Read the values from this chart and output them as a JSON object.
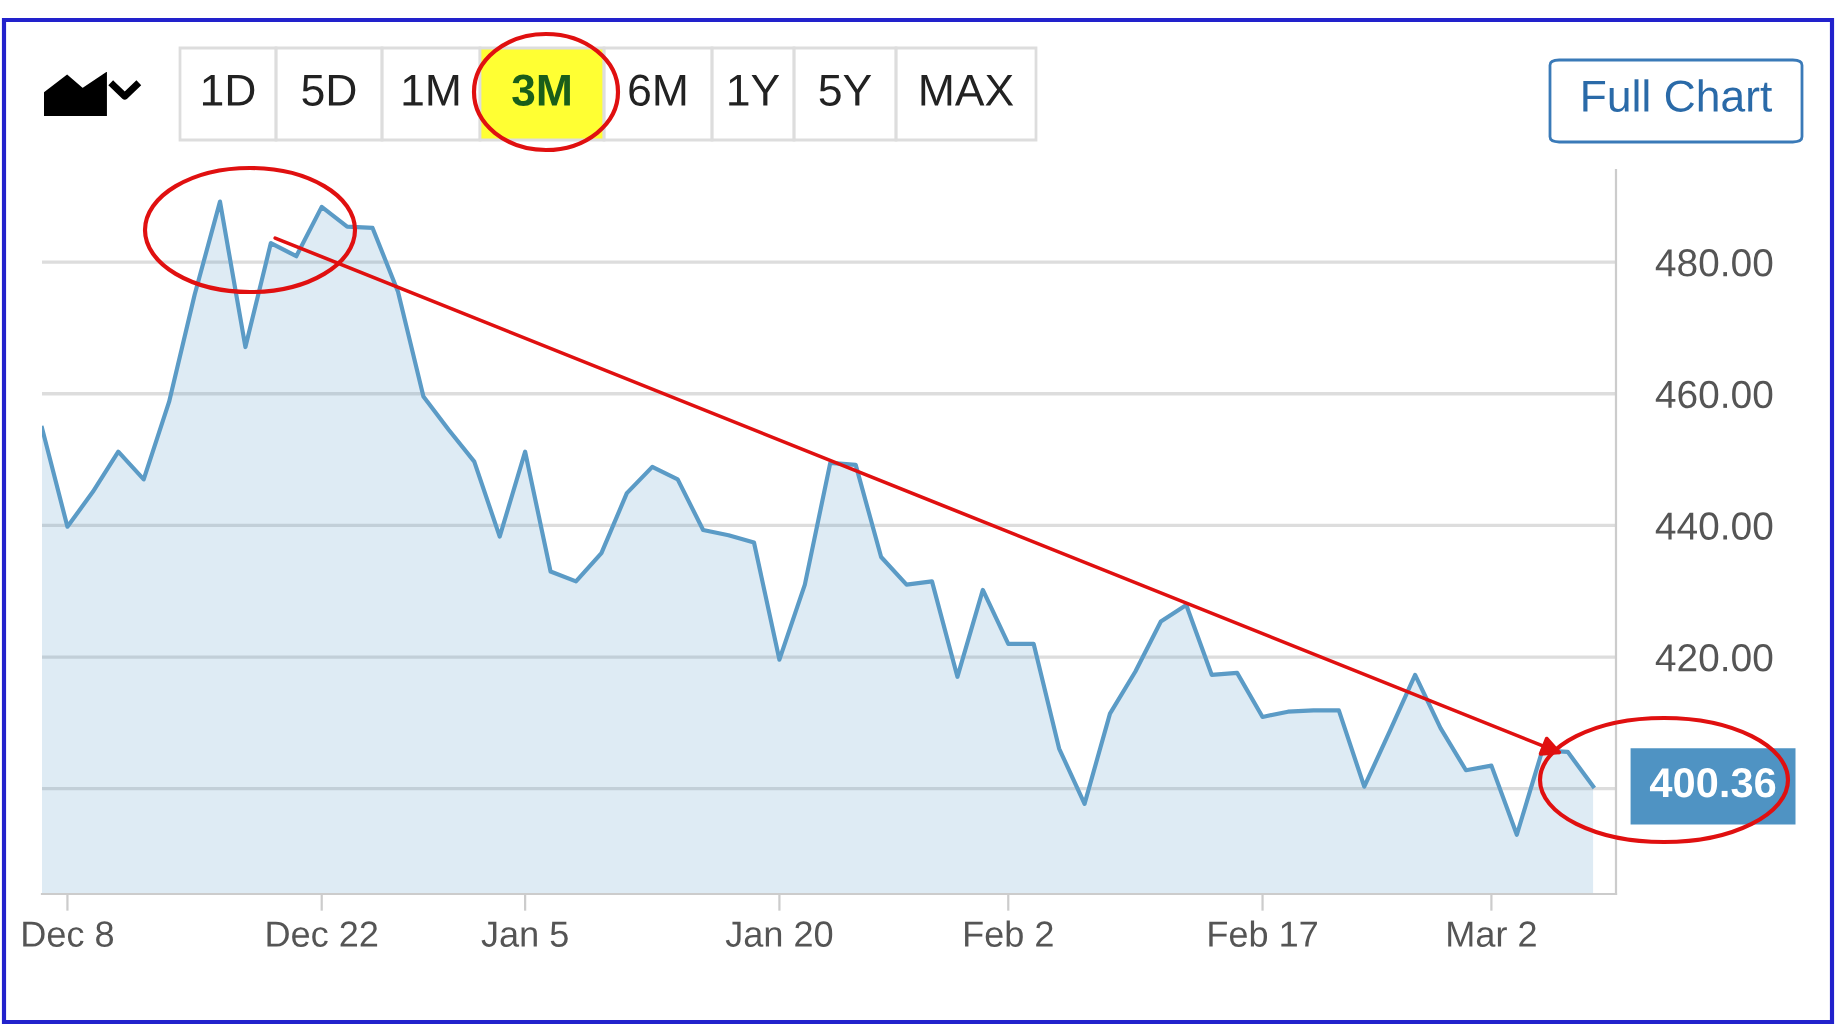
{
  "chart_data": {
    "type": "area",
    "categories": [
      null,
      "Dec 8",
      null,
      null,
      null,
      null,
      null,
      null,
      null,
      null,
      null,
      "Dec 22",
      null,
      null,
      null,
      null,
      null,
      null,
      null,
      "Jan 5",
      null,
      null,
      null,
      null,
      null,
      null,
      null,
      null,
      null,
      "Jan 20",
      null,
      null,
      null,
      null,
      null,
      null,
      null,
      null,
      "Feb 2",
      null,
      null,
      null,
      null,
      null,
      null,
      null,
      null,
      null,
      "Feb 17",
      null,
      null,
      null,
      null,
      null,
      null,
      null,
      null,
      "Mar 2",
      null,
      null,
      null,
      null
    ],
    "series": [
      {
        "color": "#5b9bc6",
        "values": [
          454.8,
          439.8,
          445.1,
          451.2,
          447.0,
          458.8,
          475.0,
          489.2,
          467.1,
          482.9,
          480.9,
          488.4,
          485.4,
          485.2,
          475.5,
          459.6,
          454.5,
          449.7,
          438.3,
          451.2,
          433.0,
          431.5,
          435.8,
          444.9,
          448.9,
          447.0,
          439.3,
          438.5,
          437.4,
          419.6,
          431.0,
          449.5,
          449.2,
          435.2,
          431.0,
          431.5,
          417.0,
          430.2,
          422.0,
          422.0,
          406.1,
          397.7,
          411.4,
          417.8,
          425.4,
          427.9,
          417.3,
          417.6,
          410.9,
          411.7,
          411.9,
          411.9,
          400.3,
          408.7,
          417.3,
          409.2,
          402.8,
          403.5,
          393.0,
          405.8,
          405.6,
          400.36
        ]
      }
    ],
    "ylim": [
      384,
      494
    ],
    "yticks": [
      {
        "value": 400,
        "label": null
      },
      {
        "value": 420,
        "label": "420.00"
      },
      {
        "value": 440,
        "label": "440.00"
      },
      {
        "value": 460,
        "label": "460.00"
      },
      {
        "value": 480,
        "label": "480.00"
      }
    ],
    "grid": "y",
    "annotations": [
      "1D",
      "5D",
      "1M",
      "3M",
      "6M",
      "1Y",
      "5Y",
      "MAX",
      "Full Chart",
      "400.36"
    ]
  }
}
